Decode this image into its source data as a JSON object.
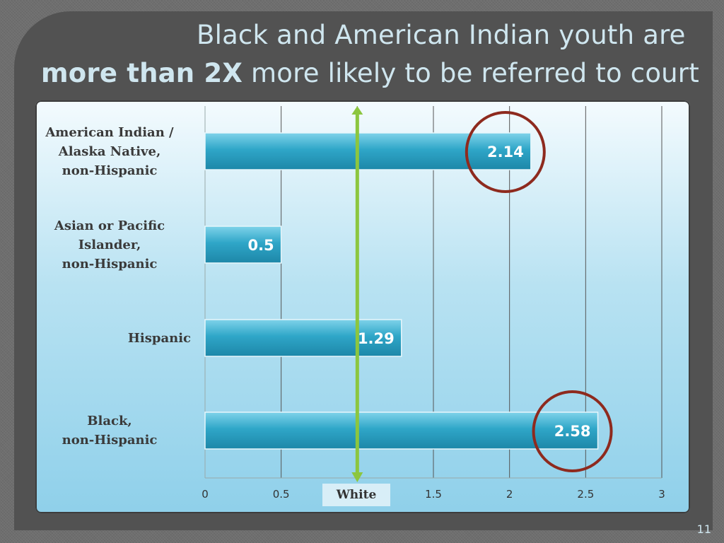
{
  "slide": {
    "title_line1": "Black and American Indian youth are",
    "title_line2_emphasis": "more than 2X",
    "title_line2_rest": " more likely to be referred to court",
    "page_number": "11"
  },
  "colors": {
    "bar": "#2fa6c8",
    "bar_top": "#7fd3ea",
    "reference_line": "#8cc63f",
    "highlight_circle": "#8e2a1e",
    "value_label": "#ffffff"
  },
  "chart_data": {
    "type": "bar",
    "orientation": "horizontal",
    "categories": [
      [
        "American Indian /",
        "Alaska Native,",
        "non-Hispanic"
      ],
      [
        "Asian or Pacific",
        "Islander,",
        "non-Hispanic"
      ],
      [
        "Hispanic"
      ],
      [
        "Black,",
        "non-Hispanic"
      ]
    ],
    "values": [
      2.14,
      0.5,
      1.29,
      2.58
    ],
    "value_labels": [
      "2.14",
      "0.5",
      "1.29",
      "2.58"
    ],
    "xlim": [
      0,
      3
    ],
    "x_ticks": [
      0,
      0.5,
      1,
      1.5,
      2,
      2.5,
      3
    ],
    "x_tick_labels": [
      "0",
      "0.5",
      "White",
      "1.5",
      "2",
      "2.5",
      "3"
    ],
    "grid": "vertical",
    "reference_line": {
      "x": 1,
      "label": "White"
    },
    "highlighted_categories": [
      0,
      3
    ]
  }
}
